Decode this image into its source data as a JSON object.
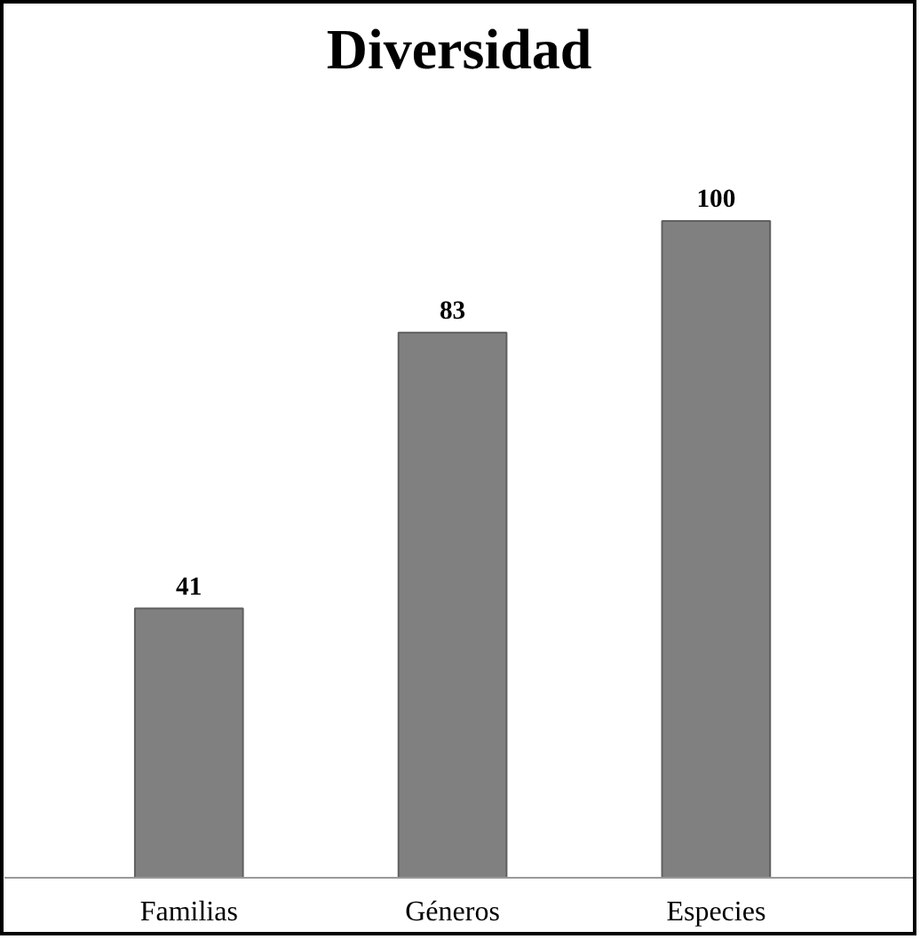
{
  "chart_data": {
    "type": "bar",
    "title": "Diversidad",
    "categories": [
      "Familias",
      "Géneros",
      "Especies"
    ],
    "values": [
      41,
      83,
      100
    ],
    "color": "#808080",
    "data_labels": true,
    "grid": false
  }
}
